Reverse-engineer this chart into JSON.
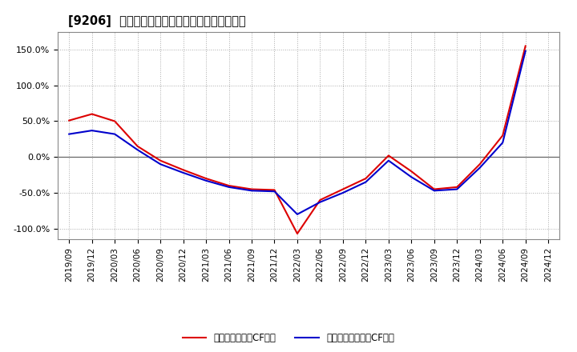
{
  "title": "[9206]  有利子負債キャッシュフロー比率の推移",
  "x_labels": [
    "2019/09",
    "2019/12",
    "2020/03",
    "2020/06",
    "2020/09",
    "2020/12",
    "2021/03",
    "2021/06",
    "2021/09",
    "2021/12",
    "2022/03",
    "2022/06",
    "2022/09",
    "2022/12",
    "2023/03",
    "2023/06",
    "2023/09",
    "2023/12",
    "2024/03",
    "2024/06",
    "2024/09",
    "2024/12"
  ],
  "operating_cf": [
    51.0,
    60.0,
    50.0,
    15.0,
    -5.0,
    -18.0,
    -30.0,
    -40.0,
    -45.0,
    -46.0,
    -107.0,
    -60.0,
    -45.0,
    -30.0,
    2.0,
    -20.0,
    -45.0,
    -42.0,
    -10.0,
    30.0,
    155.0,
    null
  ],
  "free_cf": [
    32.0,
    37.0,
    32.0,
    10.0,
    -10.0,
    -22.0,
    -33.0,
    -42.0,
    -47.0,
    -48.0,
    -80.0,
    -63.0,
    -50.0,
    -35.0,
    -5.0,
    -28.0,
    -47.0,
    -45.0,
    -15.0,
    20.0,
    148.0,
    null
  ],
  "operating_color": "#dd0000",
  "free_color": "#0000cc",
  "background_color": "#ffffff",
  "plot_bg_color": "#ffffff",
  "grid_color": "#aaaaaa",
  "ylim": [
    -115,
    175
  ],
  "yticks": [
    -100,
    -50,
    0,
    50,
    100,
    150
  ],
  "legend_labels": [
    "有利子負債営業CF比率",
    "有利子負債フリーCF比率"
  ]
}
